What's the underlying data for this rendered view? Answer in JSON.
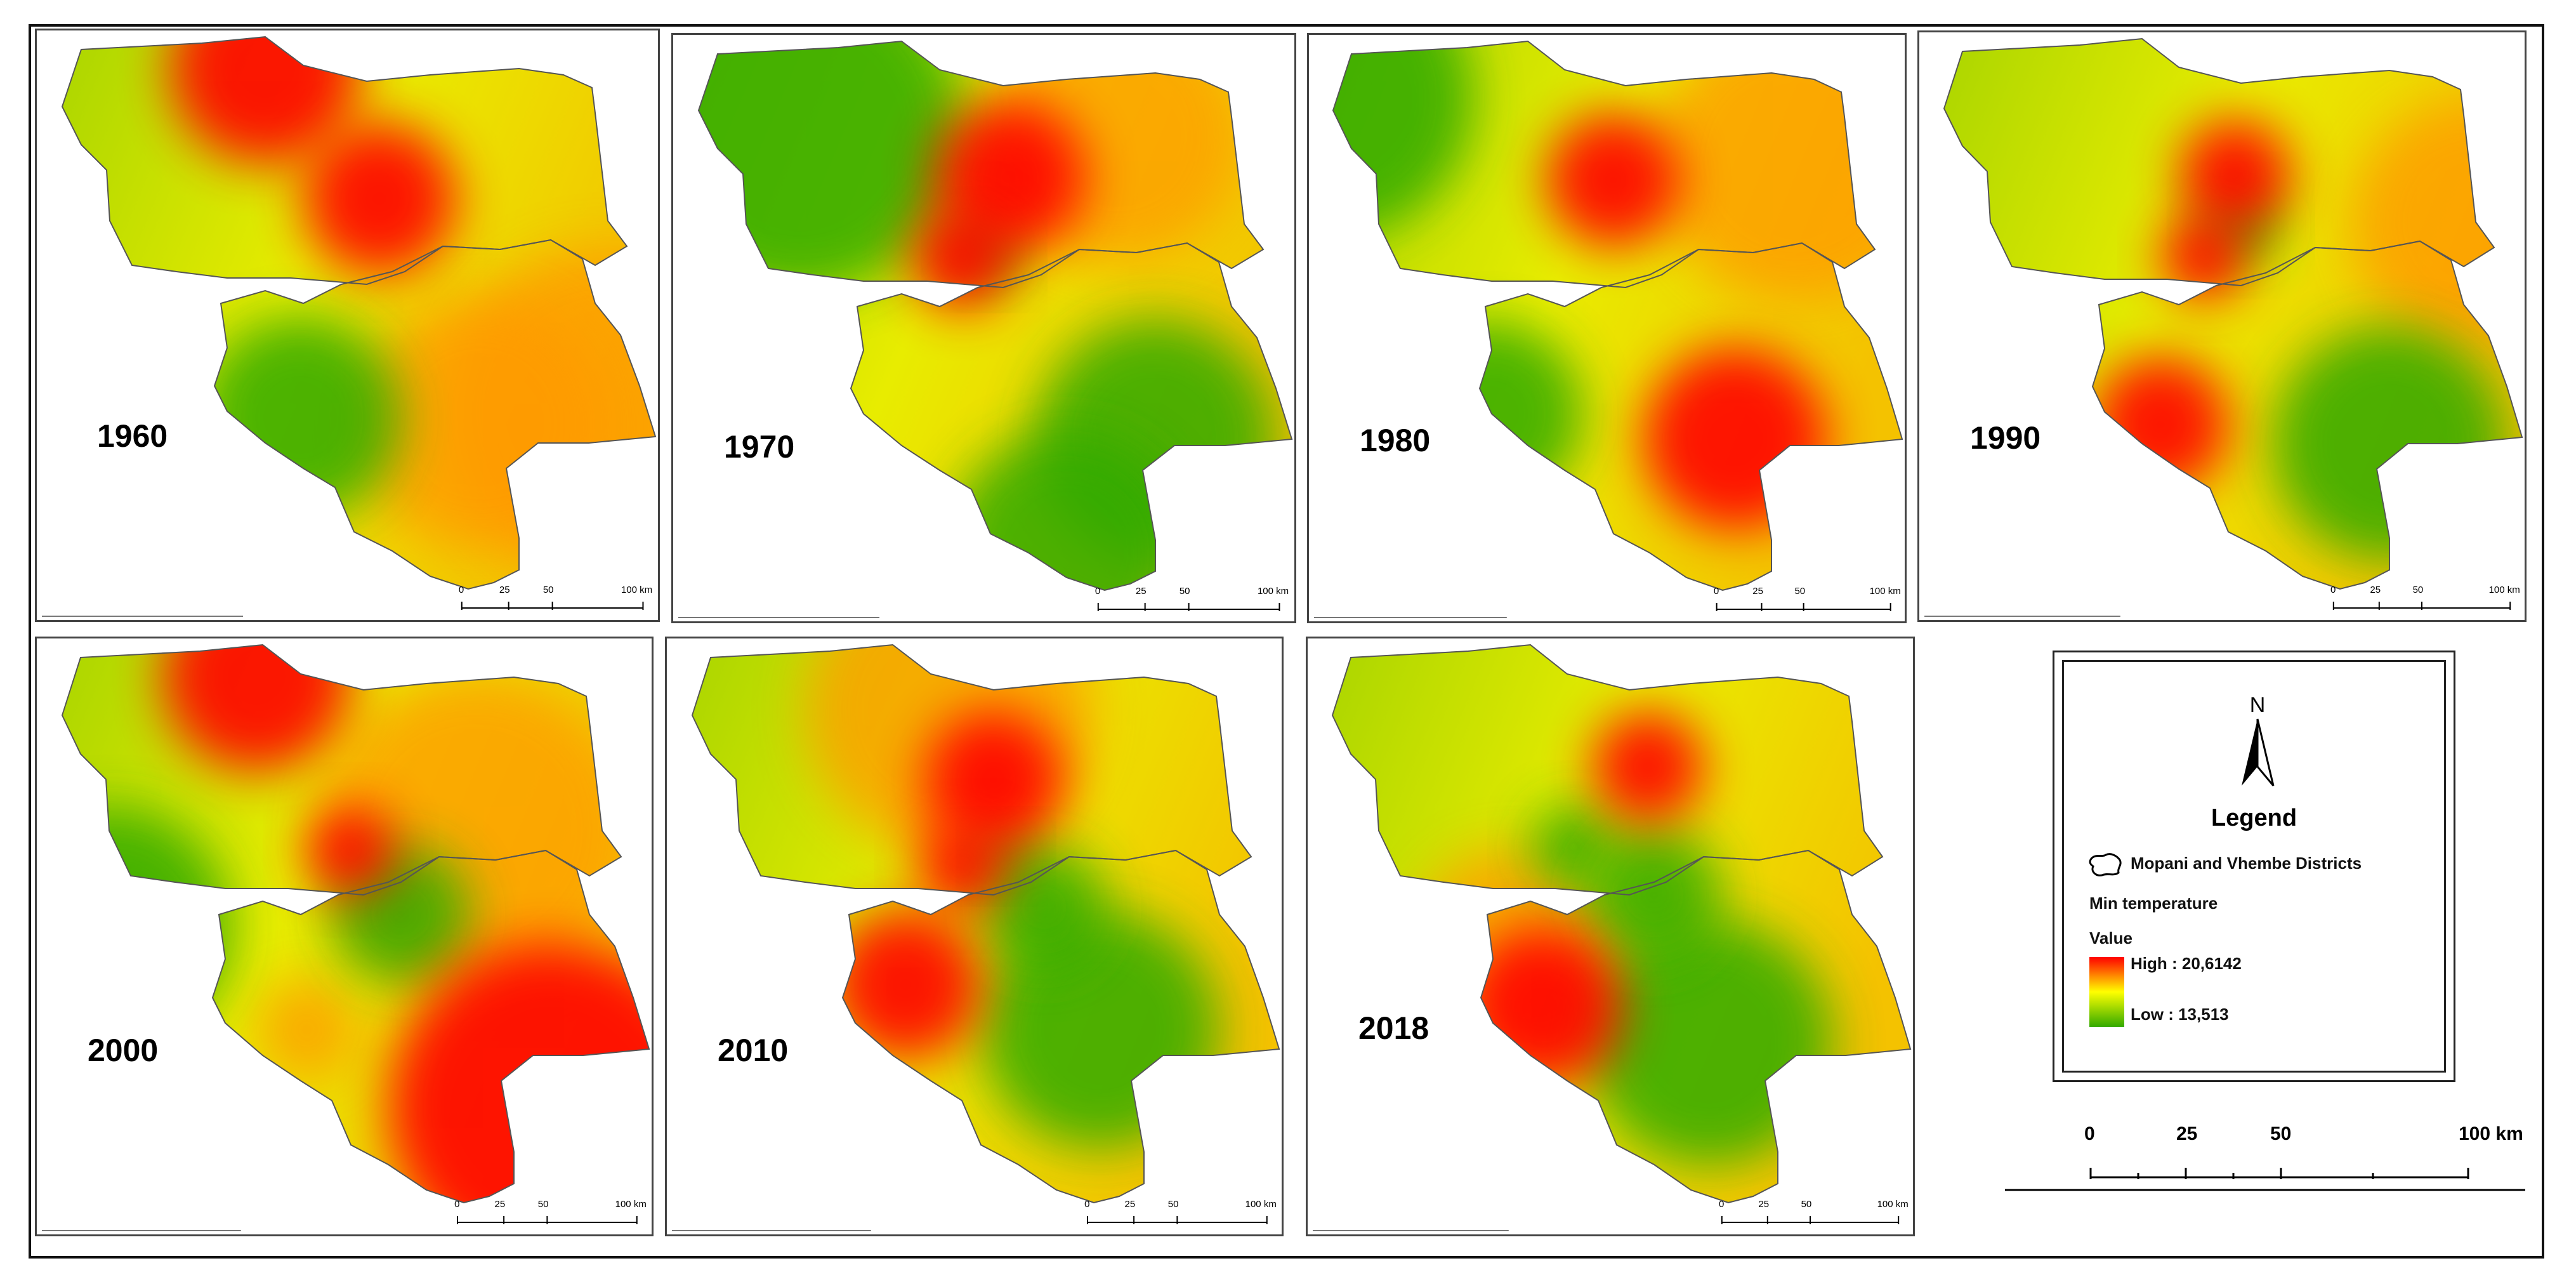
{
  "panels": [
    {
      "year": "1960",
      "hotspots": [
        "northwest border",
        "centre-north"
      ]
    },
    {
      "year": "1970",
      "hotspots": [
        "centre-north"
      ]
    },
    {
      "year": "1980",
      "hotspots": [
        "centre-north",
        "south-east"
      ]
    },
    {
      "year": "1990",
      "hotspots": [
        "centre-north",
        "south-west"
      ]
    },
    {
      "year": "2000",
      "hotspots": [
        "northwest border",
        "south-east"
      ]
    },
    {
      "year": "2010",
      "hotspots": [
        "centre-north",
        "south-west"
      ]
    },
    {
      "year": "2018",
      "hotspots": [
        "south-west"
      ]
    }
  ],
  "panel_scale": {
    "ticks": [
      "0",
      "25",
      "50",
      "100 km"
    ]
  },
  "legend": {
    "north_label": "N",
    "title": "Legend",
    "boundary_label": "Mopani and Vhembe Districts",
    "layer_label": "Min temperature",
    "value_label": "Value",
    "high_label": "High : 20,6142",
    "low_label": "Low : 13,513"
  },
  "color_ramp": {
    "high": "#ff0000",
    "mid": "#ffff00",
    "low": "#33aa00"
  },
  "big_scale": {
    "ticks": [
      "0",
      "25",
      "50",
      "100 km"
    ]
  }
}
